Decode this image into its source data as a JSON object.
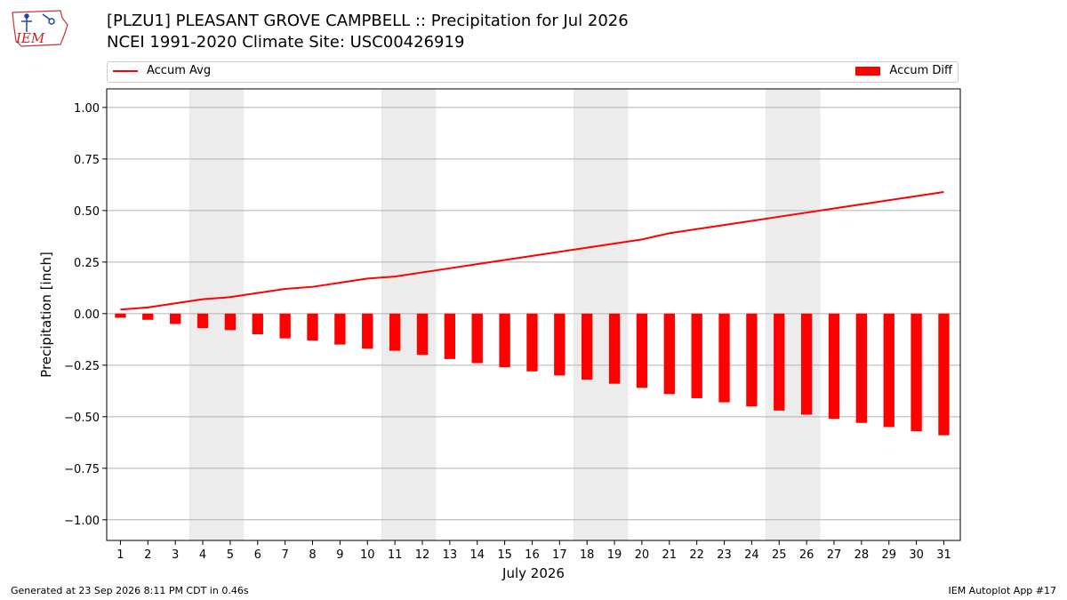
{
  "header": {
    "title_line1": "[PLZU1] PLEASANT GROVE CAMPBELL :: Precipitation for Jul 2026",
    "title_line2": "NCEI 1991-2020 Climate Site: USC00426919",
    "logo_text": "IEM"
  },
  "footer": {
    "generated": "Generated at 23 Sep 2026 8:11 PM CDT in 0.46s",
    "app": "IEM Autoplot App #17"
  },
  "colors": {
    "series": "#ff0000",
    "weekend_shade": "#ececec",
    "grid": "#b0b0b0"
  },
  "chart_data": {
    "type": "bar",
    "xlabel": "July 2026",
    "ylabel": "Precipitation [inch]",
    "ylim": [
      -1.1,
      1.09
    ],
    "yticks": [
      1.0,
      0.75,
      0.5,
      0.25,
      0.0,
      -0.25,
      -0.5,
      -0.75,
      -1.0
    ],
    "ytick_labels": [
      "1.00",
      "0.75",
      "0.50",
      "0.25",
      "0.00",
      "−0.25",
      "−0.50",
      "−0.75",
      "−1.00"
    ],
    "grid": "horizontal",
    "legend_placement": "top",
    "x": [
      1,
      2,
      3,
      4,
      5,
      6,
      7,
      8,
      9,
      10,
      11,
      12,
      13,
      14,
      15,
      16,
      17,
      18,
      19,
      20,
      21,
      22,
      23,
      24,
      25,
      26,
      27,
      28,
      29,
      30,
      31
    ],
    "weekends": [
      [
        4,
        5
      ],
      [
        11,
        12
      ],
      [
        18,
        19
      ],
      [
        25,
        26
      ]
    ],
    "series": [
      {
        "name": "Accum Avg",
        "kind": "line",
        "values": [
          0.02,
          0.03,
          0.05,
          0.07,
          0.08,
          0.1,
          0.12,
          0.13,
          0.15,
          0.17,
          0.18,
          0.2,
          0.22,
          0.24,
          0.26,
          0.28,
          0.3,
          0.32,
          0.34,
          0.36,
          0.39,
          0.41,
          0.43,
          0.45,
          0.47,
          0.49,
          0.51,
          0.53,
          0.55,
          0.57,
          0.59
        ]
      },
      {
        "name": "Accum Diff",
        "kind": "bar",
        "values": [
          -0.02,
          -0.03,
          -0.05,
          -0.07,
          -0.08,
          -0.1,
          -0.12,
          -0.13,
          -0.15,
          -0.17,
          -0.18,
          -0.2,
          -0.22,
          -0.24,
          -0.26,
          -0.28,
          -0.3,
          -0.32,
          -0.34,
          -0.36,
          -0.39,
          -0.41,
          -0.43,
          -0.45,
          -0.47,
          -0.49,
          -0.51,
          -0.53,
          -0.55,
          -0.57,
          -0.59
        ]
      }
    ]
  }
}
